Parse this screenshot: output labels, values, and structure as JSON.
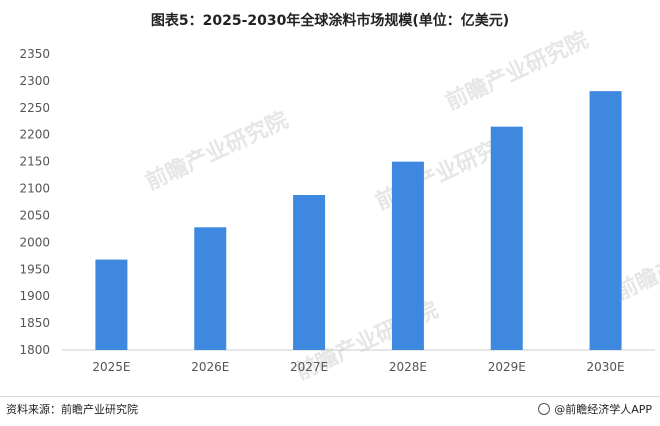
{
  "title": "图表5：2025-2030年全球涂料市场规模(单位：亿美元)",
  "footer": {
    "source": "资料来源：前瞻产业研究院",
    "brand": "@前瞻经济学人APP"
  },
  "watermark": "前瞻产业研究院",
  "colors": {
    "bar": "#3f88e0",
    "axis": "#cccccc",
    "text": "#555555"
  },
  "chart_data": {
    "type": "bar",
    "title": "图表5：2025-2030年全球涂料市场规模(单位：亿美元)",
    "categories": [
      "2025E",
      "2026E",
      "2027E",
      "2028E",
      "2029E",
      "2030E"
    ],
    "values": [
      1968,
      2028,
      2088,
      2150,
      2215,
      2281
    ],
    "ylim": [
      1800,
      2350
    ],
    "yticks": [
      1800,
      1850,
      1900,
      1950,
      2000,
      2050,
      2100,
      2150,
      2200,
      2250,
      2300,
      2350
    ],
    "grid": false,
    "legend": "none"
  }
}
